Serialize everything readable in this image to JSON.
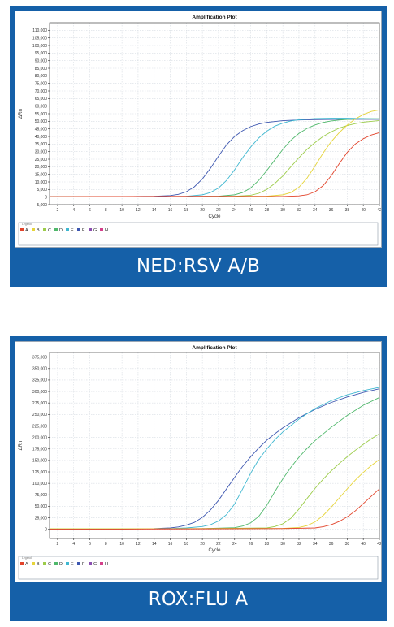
{
  "panels": [
    {
      "caption": "NED:RSV A/B",
      "chart_data": {
        "type": "line",
        "title": "Amplification Plot",
        "xlabel": "Cycle",
        "ylabel": "ΔRn",
        "xlim": [
          1,
          42
        ],
        "ylim": [
          -5000,
          115000
        ],
        "x_ticks": [
          2,
          4,
          6,
          8,
          10,
          12,
          14,
          16,
          18,
          20,
          22,
          24,
          26,
          28,
          30,
          32,
          34,
          36,
          38,
          40,
          42
        ],
        "y_ticks": [
          -5000,
          0,
          5000,
          10000,
          15000,
          20000,
          25000,
          30000,
          35000,
          40000,
          45000,
          50000,
          55000,
          60000,
          65000,
          70000,
          75000,
          80000,
          85000,
          90000,
          95000,
          100000,
          105000,
          110000
        ],
        "y_tick_labels": [
          "-5,000",
          "0",
          "5,000",
          "10,000",
          "15,000",
          "20,000",
          "25,000",
          "30,000",
          "35,000",
          "40,000",
          "45,000",
          "50,000",
          "55,000",
          "60,000",
          "65,000",
          "70,000",
          "75,000",
          "80,000",
          "85,000",
          "90,000",
          "95,000",
          "100,000",
          "105,000",
          "110,000"
        ],
        "grid": true,
        "legend_title": "Legend",
        "legend": [
          "A",
          "B",
          "C",
          "D",
          "E",
          "F",
          "G",
          "H"
        ],
        "legend_colors": [
          "#e2432a",
          "#e6d43a",
          "#9ccc4a",
          "#4fb86b",
          "#3fb7d0",
          "#3d57b0",
          "#8a4fb0",
          "#d43f8a"
        ],
        "series": [
          {
            "name": "F",
            "color": "#3d57b0",
            "x": [
              1,
              5,
              10,
              14,
              16,
              17,
              18,
              19,
              20,
              21,
              22,
              23,
              24,
              25,
              26,
              27,
              28,
              30,
              32,
              34,
              36,
              38,
              40,
              42
            ],
            "values": [
              300,
              400,
              300,
              500,
              1000,
              1800,
              3500,
              6800,
              12000,
              19000,
              27000,
              34500,
              40000,
              43800,
              46500,
              48200,
              49300,
              50400,
              50900,
              51100,
              51200,
              51300,
              51300,
              51300
            ]
          },
          {
            "name": "E",
            "color": "#3fb7d0",
            "x": [
              1,
              10,
              16,
              18,
              20,
              21,
              22,
              23,
              24,
              25,
              26,
              27,
              28,
              29,
              30,
              31,
              32,
              34,
              36,
              38,
              40,
              42
            ],
            "values": [
              200,
              300,
              300,
              500,
              1500,
              3000,
              6000,
              11000,
              18000,
              26000,
              33000,
              39000,
              43500,
              46800,
              48800,
              50200,
              51000,
              51800,
              52000,
              52000,
              51800,
              51600
            ]
          },
          {
            "name": "D",
            "color": "#4fb86b",
            "x": [
              1,
              10,
              18,
              22,
              24,
              25,
              26,
              27,
              28,
              29,
              30,
              31,
              32,
              33,
              34,
              35,
              36,
              37,
              38,
              40,
              42
            ],
            "values": [
              200,
              300,
              300,
              600,
              1500,
              3000,
              6000,
              11000,
              17500,
              24500,
              31500,
              37500,
              42000,
              45300,
              47600,
              49200,
              50200,
              50800,
              51200,
              51600,
              51700
            ]
          },
          {
            "name": "C",
            "color": "#9ccc4a",
            "x": [
              1,
              10,
              20,
              24,
              26,
              27,
              28,
              29,
              30,
              31,
              32,
              33,
              34,
              35,
              36,
              37,
              38,
              39,
              40,
              42
            ],
            "values": [
              200,
              300,
              300,
              500,
              1200,
              2500,
              5000,
              9000,
              14000,
              20000,
              26000,
              31500,
              36000,
              40000,
              43000,
              45500,
              47200,
              48500,
              49400,
              50500
            ]
          },
          {
            "name": "B",
            "color": "#e6d43a",
            "x": [
              1,
              10,
              20,
              28,
              30,
              31,
              32,
              33,
              34,
              35,
              36,
              37,
              38,
              39,
              40,
              41,
              42
            ],
            "values": [
              200,
              300,
              300,
              600,
              1500,
              3000,
              6500,
              12500,
              20500,
              29000,
              36500,
              42500,
              47500,
              51500,
              54500,
              56500,
              57500
            ]
          },
          {
            "name": "A",
            "color": "#e2432a",
            "x": [
              1,
              10,
              20,
              30,
              32,
              33,
              34,
              35,
              36,
              37,
              38,
              39,
              40,
              41,
              42
            ],
            "values": [
              300,
              400,
              500,
              400,
              800,
              1500,
              3500,
              7500,
              14000,
              22000,
              29500,
              35000,
              38500,
              41000,
              42500
            ]
          }
        ]
      }
    },
    {
      "caption": "ROX:FLU A",
      "chart_data": {
        "type": "line",
        "title": "Amplification Plot",
        "xlabel": "Cycle",
        "ylabel": "ΔRn",
        "xlim": [
          1,
          42
        ],
        "ylim": [
          -20000,
          385000
        ],
        "x_ticks": [
          2,
          4,
          6,
          8,
          10,
          12,
          14,
          16,
          18,
          20,
          22,
          24,
          26,
          28,
          30,
          32,
          34,
          36,
          38,
          40,
          42
        ],
        "y_ticks": [
          0,
          25000,
          50000,
          75000,
          100000,
          125000,
          150000,
          175000,
          200000,
          225000,
          250000,
          275000,
          300000,
          325000,
          350000,
          375000
        ],
        "y_tick_labels": [
          "0",
          "25,000",
          "50,000",
          "75,000",
          "100,000",
          "125,000",
          "150,000",
          "175,000",
          "200,000",
          "225,000",
          "250,000",
          "275,000",
          "300,000",
          "325,000",
          "350,000",
          "375,000"
        ],
        "grid": true,
        "legend_title": "Legend",
        "legend": [
          "A",
          "B",
          "C",
          "D",
          "E",
          "F",
          "G",
          "H"
        ],
        "legend_colors": [
          "#e2432a",
          "#e6d43a",
          "#9ccc4a",
          "#4fb86b",
          "#3fb7d0",
          "#3d57b0",
          "#8a4fb0",
          "#d43f8a"
        ],
        "series": [
          {
            "name": "F",
            "color": "#3d57b0",
            "x": [
              1,
              10,
              14,
              16,
              17,
              18,
              19,
              20,
              21,
              22,
              23,
              24,
              25,
              26,
              27,
              28,
              29,
              30,
              32,
              34,
              36,
              38,
              40,
              42
            ],
            "values": [
              1000,
              1000,
              1500,
              3000,
              5000,
              9000,
              15000,
              26000,
              42000,
              63000,
              88000,
              113000,
              137000,
              158000,
              177000,
              194000,
              208000,
              221000,
              243000,
              261000,
              276000,
              288000,
              298000,
              306000
            ]
          },
          {
            "name": "E",
            "color": "#3fb7d0",
            "x": [
              1,
              10,
              16,
              18,
              20,
              21,
              22,
              23,
              24,
              25,
              26,
              27,
              28,
              29,
              30,
              32,
              34,
              36,
              38,
              40,
              42
            ],
            "values": [
              1000,
              1000,
              1500,
              3000,
              6000,
              10000,
              18000,
              32000,
              55000,
              88000,
              122000,
              152000,
              175000,
              195000,
              212000,
              240000,
              263000,
              280000,
              293000,
              302000,
              309000
            ]
          },
          {
            "name": "D",
            "color": "#4fb86b",
            "x": [
              1,
              10,
              20,
              24,
              25,
              26,
              27,
              28,
              29,
              30,
              31,
              32,
              33,
              34,
              36,
              38,
              40,
              42
            ],
            "values": [
              1000,
              1000,
              1500,
              3500,
              7000,
              14000,
              28000,
              52000,
              82000,
              110000,
              135000,
              157000,
              176000,
              193000,
              222000,
              248000,
              270000,
              287000
            ]
          },
          {
            "name": "C",
            "color": "#9ccc4a",
            "x": [
              1,
              10,
              20,
              28,
              29,
              30,
              31,
              32,
              33,
              34,
              35,
              36,
              37,
              38,
              39,
              40,
              41,
              42
            ],
            "values": [
              1000,
              1000,
              1500,
              3000,
              6000,
              12000,
              24000,
              44000,
              67000,
              89000,
              109000,
              127000,
              143000,
              158000,
              172000,
              185000,
              197000,
              208000
            ]
          },
          {
            "name": "B",
            "color": "#e6d43a",
            "x": [
              1,
              10,
              20,
              30,
              32,
              33,
              34,
              35,
              36,
              37,
              38,
              39,
              40,
              41,
              42
            ],
            "values": [
              1000,
              1000,
              1500,
              2000,
              4000,
              8000,
              16000,
              30000,
              48000,
              68000,
              88000,
              107000,
              124000,
              139000,
              152000
            ]
          },
          {
            "name": "A",
            "color": "#e2432a",
            "x": [
              1,
              10,
              20,
              30,
              34,
              35,
              36,
              37,
              38,
              39,
              40,
              41,
              42
            ],
            "values": [
              500,
              500,
              1000,
              1500,
              3000,
              5500,
              10000,
              17000,
              27000,
              40000,
              56000,
              72000,
              88000
            ]
          }
        ]
      }
    }
  ]
}
